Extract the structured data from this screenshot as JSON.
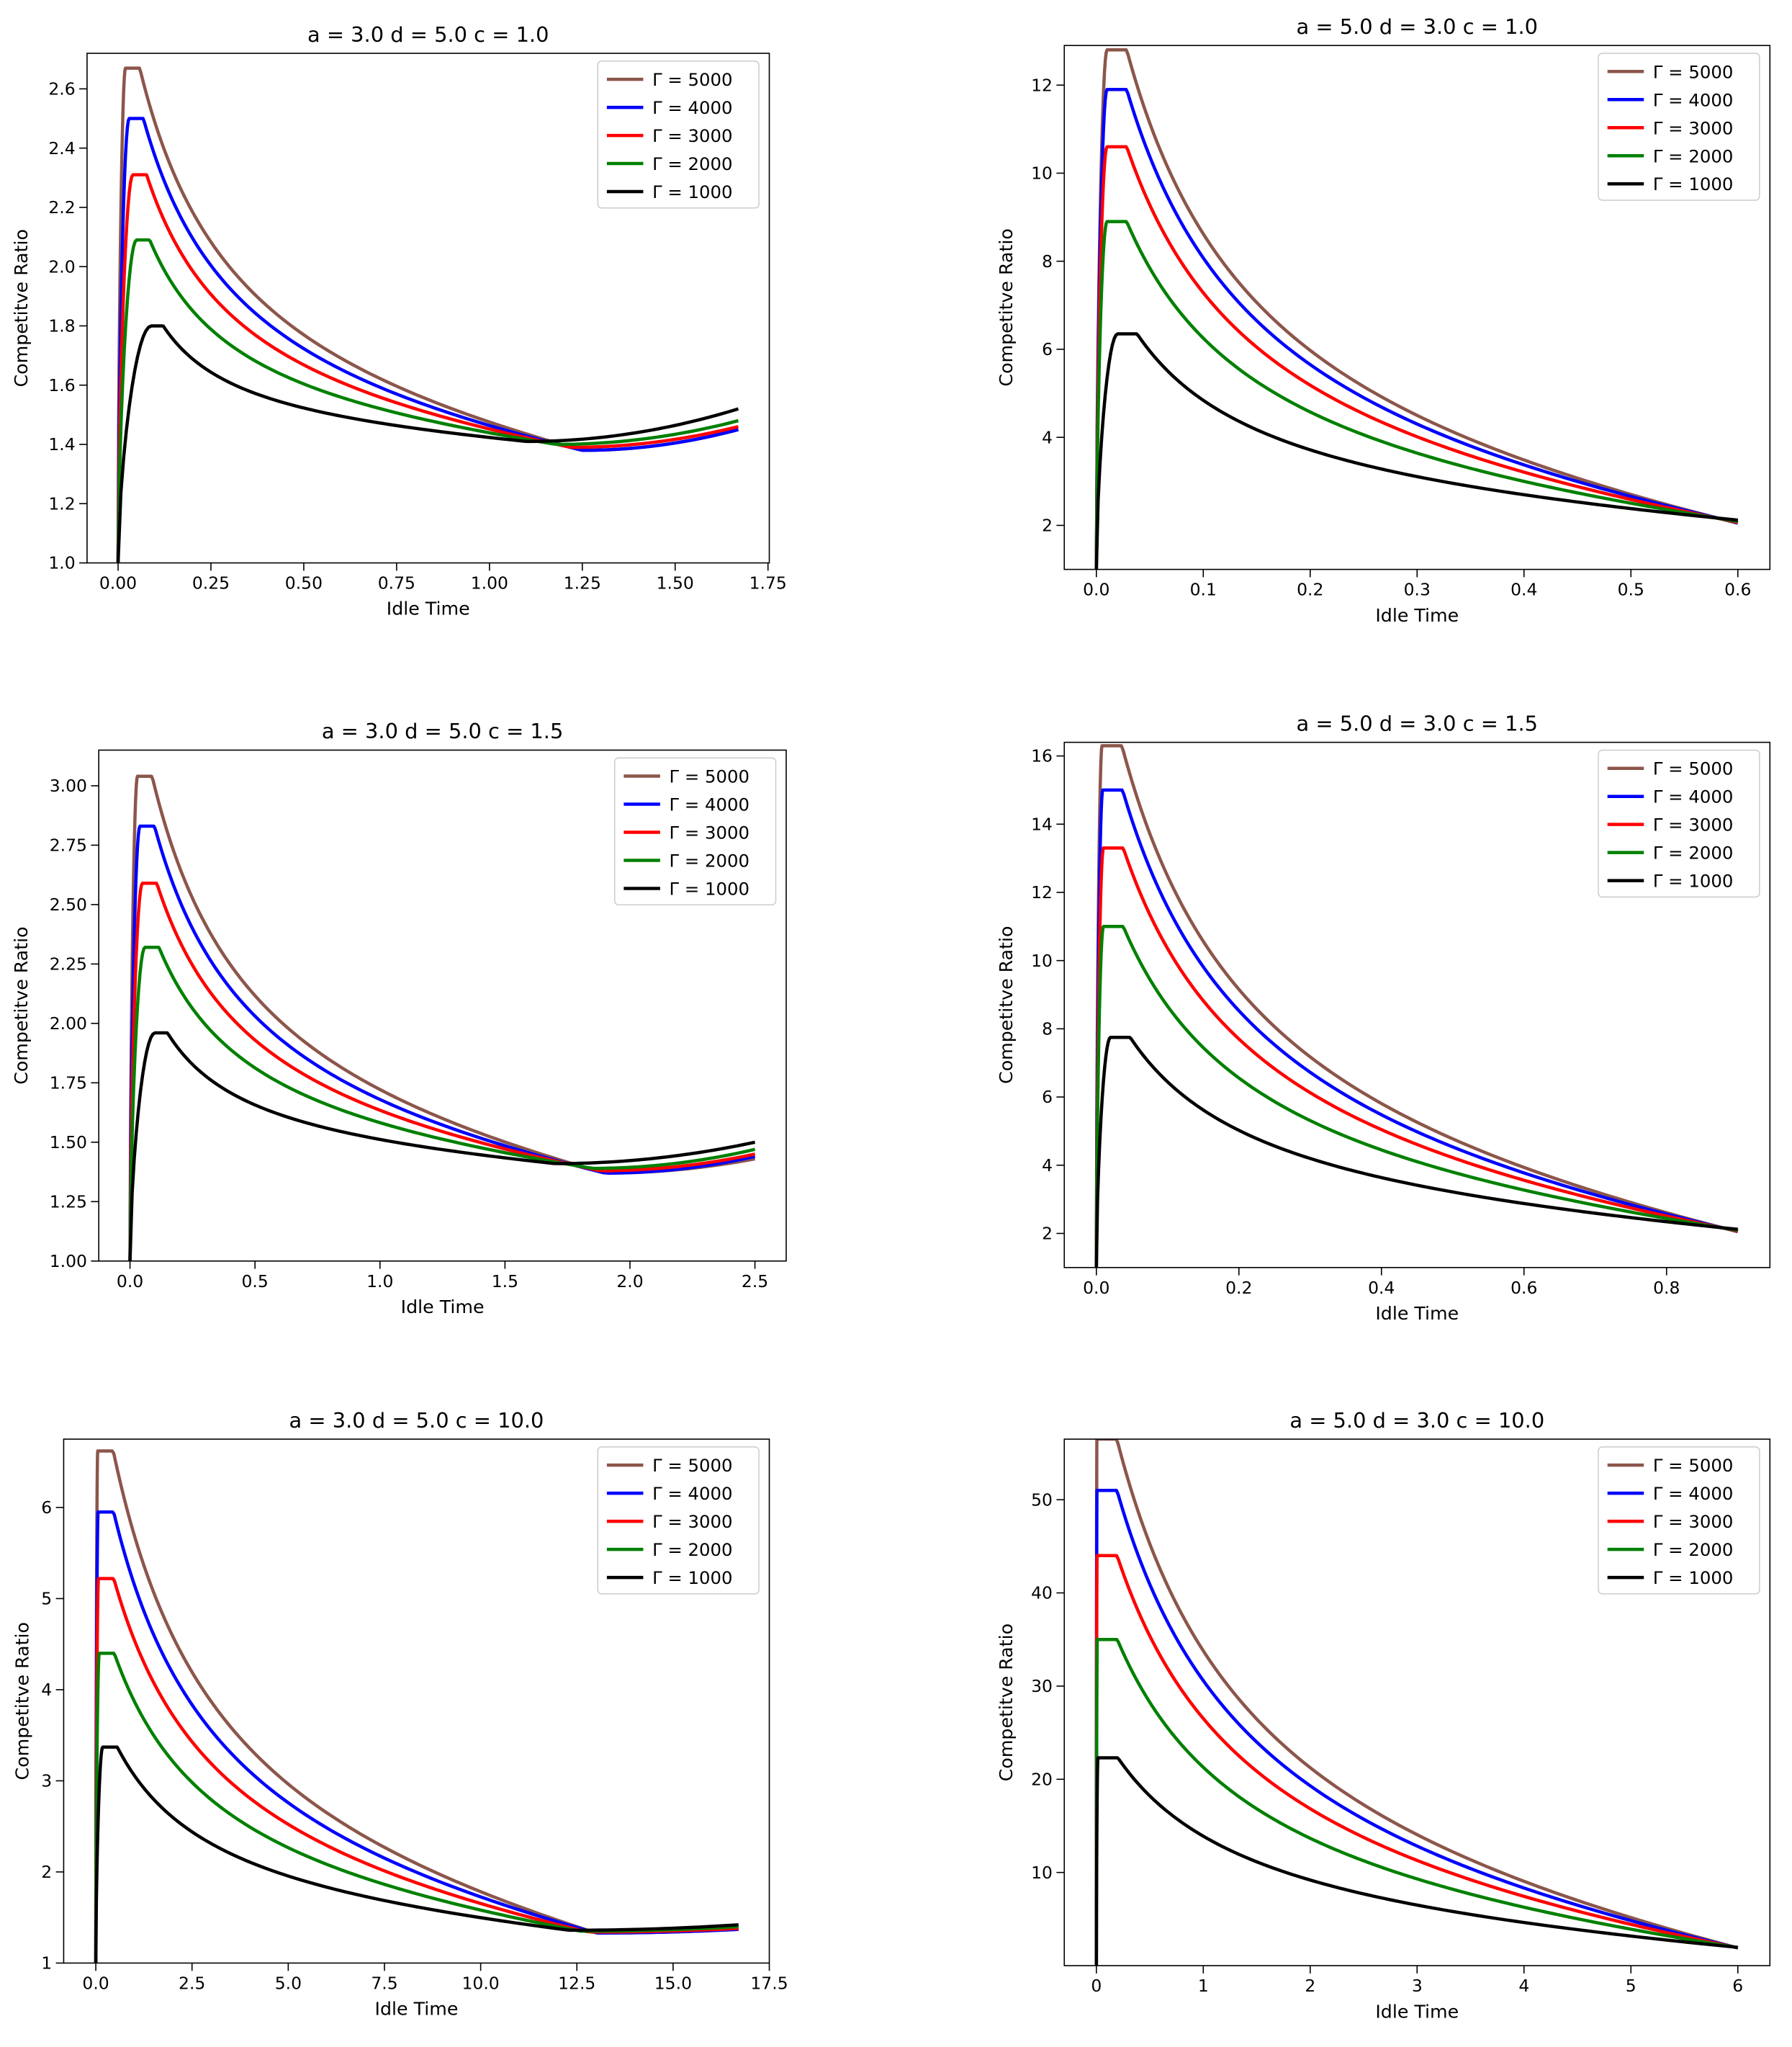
{
  "chart_data": [
    {
      "type": "line",
      "title": "a = 3.0 d = 5.0 c = 1.0",
      "xlabel": "Idle Time",
      "ylabel": "Competitve Ratio",
      "xlim": [
        -0.0835,
        1.7535
      ],
      "ylim": [
        1.0,
        2.72
      ],
      "xticks": [
        0.0,
        0.25,
        0.5,
        0.75,
        1.0,
        1.25,
        1.5,
        1.75
      ],
      "xtick_labels": [
        "0.00",
        "0.25",
        "0.50",
        "0.75",
        "1.00",
        "1.25",
        "1.50",
        "1.75"
      ],
      "yticks": [
        1.0,
        1.2,
        1.4,
        1.6,
        1.8,
        2.0,
        2.2,
        2.4,
        2.6
      ],
      "ytick_labels": [
        "1.0",
        "1.2",
        "1.4",
        "1.6",
        "1.8",
        "2.0",
        "2.2",
        "2.4",
        "2.6"
      ],
      "legend": "top-right",
      "series": [
        {
          "name": "Γ = 5000",
          "color": "#8c564b",
          "peak_x": 0.02,
          "peak_y": 2.67,
          "min_x": 1.25,
          "min_y": 1.38,
          "end_x": 1.67,
          "end_y": 1.45
        },
        {
          "name": "Γ = 4000",
          "color": "#0000ff",
          "peak_x": 0.03,
          "peak_y": 2.5,
          "min_x": 1.25,
          "min_y": 1.38,
          "end_x": 1.67,
          "end_y": 1.45
        },
        {
          "name": "Γ = 3000",
          "color": "#ff0000",
          "peak_x": 0.04,
          "peak_y": 2.31,
          "min_x": 1.22,
          "min_y": 1.39,
          "end_x": 1.67,
          "end_y": 1.46
        },
        {
          "name": "Γ = 2000",
          "color": "#008000",
          "peak_x": 0.05,
          "peak_y": 2.09,
          "min_x": 1.18,
          "min_y": 1.4,
          "end_x": 1.67,
          "end_y": 1.48
        },
        {
          "name": "Γ = 1000",
          "color": "#000000",
          "peak_x": 0.09,
          "peak_y": 1.8,
          "min_x": 1.1,
          "min_y": 1.41,
          "end_x": 1.67,
          "end_y": 1.52
        }
      ]
    },
    {
      "type": "line",
      "title": "a = 5.0 d = 3.0 c = 1.0",
      "xlabel": "Idle Time",
      "ylabel": "Competitve Ratio",
      "xlim": [
        -0.03,
        0.63
      ],
      "ylim": [
        1.0,
        12.9
      ],
      "xticks": [
        0.0,
        0.1,
        0.2,
        0.3,
        0.4,
        0.5,
        0.6
      ],
      "xtick_labels": [
        "0.0",
        "0.1",
        "0.2",
        "0.3",
        "0.4",
        "0.5",
        "0.6"
      ],
      "yticks": [
        2,
        4,
        6,
        8,
        10,
        12
      ],
      "ytick_labels": [
        "2",
        "4",
        "6",
        "8",
        "10",
        "12"
      ],
      "legend": "top-right",
      "series": [
        {
          "name": "Γ = 5000",
          "color": "#8c564b",
          "peak_x": 0.01,
          "peak_y": 12.8,
          "end_x": 0.6,
          "end_y": 2.05
        },
        {
          "name": "Γ = 4000",
          "color": "#0000ff",
          "peak_x": 0.01,
          "peak_y": 11.9,
          "end_x": 0.6,
          "end_y": 2.06
        },
        {
          "name": "Γ = 3000",
          "color": "#ff0000",
          "peak_x": 0.01,
          "peak_y": 10.6,
          "end_x": 0.6,
          "end_y": 2.07
        },
        {
          "name": "Γ = 2000",
          "color": "#008000",
          "peak_x": 0.01,
          "peak_y": 8.9,
          "end_x": 0.6,
          "end_y": 2.09
        },
        {
          "name": "Γ = 1000",
          "color": "#000000",
          "peak_x": 0.02,
          "peak_y": 6.35,
          "end_x": 0.6,
          "end_y": 2.12
        }
      ]
    },
    {
      "type": "line",
      "title": "a = 3.0 d = 5.0 c = 1.5",
      "xlabel": "Idle Time",
      "ylabel": "Competitve Ratio",
      "xlim": [
        -0.125,
        2.625
      ],
      "ylim": [
        1.0,
        3.15
      ],
      "xticks": [
        0.0,
        0.5,
        1.0,
        1.5,
        2.0,
        2.5
      ],
      "xtick_labels": [
        "0.0",
        "0.5",
        "1.0",
        "1.5",
        "2.0",
        "2.5"
      ],
      "yticks": [
        1.0,
        1.25,
        1.5,
        1.75,
        2.0,
        2.25,
        2.5,
        2.75,
        3.0
      ],
      "ytick_labels": [
        "1.00",
        "1.25",
        "1.50",
        "1.75",
        "2.00",
        "2.25",
        "2.50",
        "2.75",
        "3.00"
      ],
      "legend": "top-right",
      "series": [
        {
          "name": "Γ = 5000",
          "color": "#8c564b",
          "peak_x": 0.03,
          "peak_y": 3.04,
          "min_x": 1.9,
          "min_y": 1.37,
          "end_x": 2.5,
          "end_y": 1.43
        },
        {
          "name": "Γ = 4000",
          "color": "#0000ff",
          "peak_x": 0.04,
          "peak_y": 2.83,
          "min_x": 1.9,
          "min_y": 1.37,
          "end_x": 2.5,
          "end_y": 1.44
        },
        {
          "name": "Γ = 3000",
          "color": "#ff0000",
          "peak_x": 0.05,
          "peak_y": 2.59,
          "min_x": 1.88,
          "min_y": 1.38,
          "end_x": 2.5,
          "end_y": 1.45
        },
        {
          "name": "Γ = 2000",
          "color": "#008000",
          "peak_x": 0.06,
          "peak_y": 2.32,
          "min_x": 1.85,
          "min_y": 1.39,
          "end_x": 2.5,
          "end_y": 1.47
        },
        {
          "name": "Γ = 1000",
          "color": "#000000",
          "peak_x": 0.1,
          "peak_y": 1.96,
          "min_x": 1.7,
          "min_y": 1.41,
          "end_x": 2.5,
          "end_y": 1.5
        }
      ]
    },
    {
      "type": "line",
      "title": "a = 5.0 d = 3.0 c = 1.5",
      "xlabel": "Idle Time",
      "ylabel": "Competitve Ratio",
      "xlim": [
        -0.045,
        0.945
      ],
      "ylim": [
        1.0,
        16.4
      ],
      "xticks": [
        0.0,
        0.2,
        0.4,
        0.6,
        0.8
      ],
      "xtick_labels": [
        "0.0",
        "0.2",
        "0.4",
        "0.6",
        "0.8"
      ],
      "yticks": [
        2,
        4,
        6,
        8,
        10,
        12,
        14,
        16
      ],
      "ytick_labels": [
        "2",
        "4",
        "6",
        "8",
        "10",
        "12",
        "14",
        "16"
      ],
      "legend": "top-right",
      "series": [
        {
          "name": "Γ = 5000",
          "color": "#8c564b",
          "peak_x": 0.008,
          "peak_y": 16.3,
          "end_x": 0.9,
          "end_y": 2.05
        },
        {
          "name": "Γ = 4000",
          "color": "#0000ff",
          "peak_x": 0.009,
          "peak_y": 15.0,
          "end_x": 0.9,
          "end_y": 2.06
        },
        {
          "name": "Γ = 3000",
          "color": "#ff0000",
          "peak_x": 0.01,
          "peak_y": 13.3,
          "end_x": 0.9,
          "end_y": 2.07
        },
        {
          "name": "Γ = 2000",
          "color": "#008000",
          "peak_x": 0.01,
          "peak_y": 11.0,
          "end_x": 0.9,
          "end_y": 2.09
        },
        {
          "name": "Γ = 1000",
          "color": "#000000",
          "peak_x": 0.02,
          "peak_y": 7.75,
          "end_x": 0.9,
          "end_y": 2.12
        }
      ]
    },
    {
      "type": "line",
      "title": "a = 3.0 d = 5.0 c = 10.0",
      "xlabel": "Idle Time",
      "ylabel": "Competitve Ratio",
      "xlim": [
        -0.835,
        17.5
      ],
      "ylim": [
        1.0,
        6.75
      ],
      "xticks": [
        0.0,
        2.5,
        5.0,
        7.5,
        10.0,
        12.5,
        15.0,
        17.5
      ],
      "xtick_labels": [
        "0.0",
        "2.5",
        "5.0",
        "7.5",
        "10.0",
        "12.5",
        "15.0",
        "17.5"
      ],
      "yticks": [
        1,
        2,
        3,
        4,
        5,
        6
      ],
      "ytick_labels": [
        "1",
        "2",
        "3",
        "4",
        "5",
        "6"
      ],
      "legend": "top-right",
      "series": [
        {
          "name": "Γ = 5000",
          "color": "#8c564b",
          "peak_x": 0.05,
          "peak_y": 6.62,
          "min_x": 13.0,
          "min_y": 1.33,
          "end_x": 16.7,
          "end_y": 1.37
        },
        {
          "name": "Γ = 4000",
          "color": "#0000ff",
          "peak_x": 0.06,
          "peak_y": 5.95,
          "min_x": 13.0,
          "min_y": 1.33,
          "end_x": 16.7,
          "end_y": 1.37
        },
        {
          "name": "Γ = 3000",
          "color": "#ff0000",
          "peak_x": 0.07,
          "peak_y": 5.22,
          "min_x": 12.8,
          "min_y": 1.34,
          "end_x": 16.7,
          "end_y": 1.38
        },
        {
          "name": "Γ = 2000",
          "color": "#008000",
          "peak_x": 0.09,
          "peak_y": 4.4,
          "min_x": 12.6,
          "min_y": 1.35,
          "end_x": 16.7,
          "end_y": 1.4
        },
        {
          "name": "Γ = 1000",
          "color": "#000000",
          "peak_x": 0.18,
          "peak_y": 3.37,
          "min_x": 12.3,
          "min_y": 1.36,
          "end_x": 16.7,
          "end_y": 1.42
        }
      ]
    },
    {
      "type": "line",
      "title": "a = 5.0 d = 3.0 c = 10.0",
      "xlabel": "Idle Time",
      "ylabel": "Competitve Ratio",
      "xlim": [
        -0.3,
        6.3
      ],
      "ylim": [
        0.0,
        56.5
      ],
      "xticks": [
        0,
        1,
        2,
        3,
        4,
        5,
        6
      ],
      "xtick_labels": [
        "0",
        "1",
        "2",
        "3",
        "4",
        "5",
        "6"
      ],
      "yticks": [
        10,
        20,
        30,
        40,
        50
      ],
      "ytick_labels": [
        "10",
        "20",
        "30",
        "40",
        "50"
      ],
      "legend": "top-right",
      "series": [
        {
          "name": "Γ = 5000",
          "color": "#8c564b",
          "peak_x": 0.005,
          "peak_y": 56.5,
          "end_x": 6.0,
          "end_y": 1.9
        },
        {
          "name": "Γ = 4000",
          "color": "#0000ff",
          "peak_x": 0.006,
          "peak_y": 51.0,
          "end_x": 6.0,
          "end_y": 1.9
        },
        {
          "name": "Γ = 3000",
          "color": "#ff0000",
          "peak_x": 0.007,
          "peak_y": 44.0,
          "end_x": 6.0,
          "end_y": 1.92
        },
        {
          "name": "Γ = 2000",
          "color": "#008000",
          "peak_x": 0.009,
          "peak_y": 35.0,
          "end_x": 6.0,
          "end_y": 1.94
        },
        {
          "name": "Γ = 1000",
          "color": "#000000",
          "peak_x": 0.015,
          "peak_y": 22.3,
          "end_x": 6.0,
          "end_y": 1.96
        }
      ]
    }
  ]
}
